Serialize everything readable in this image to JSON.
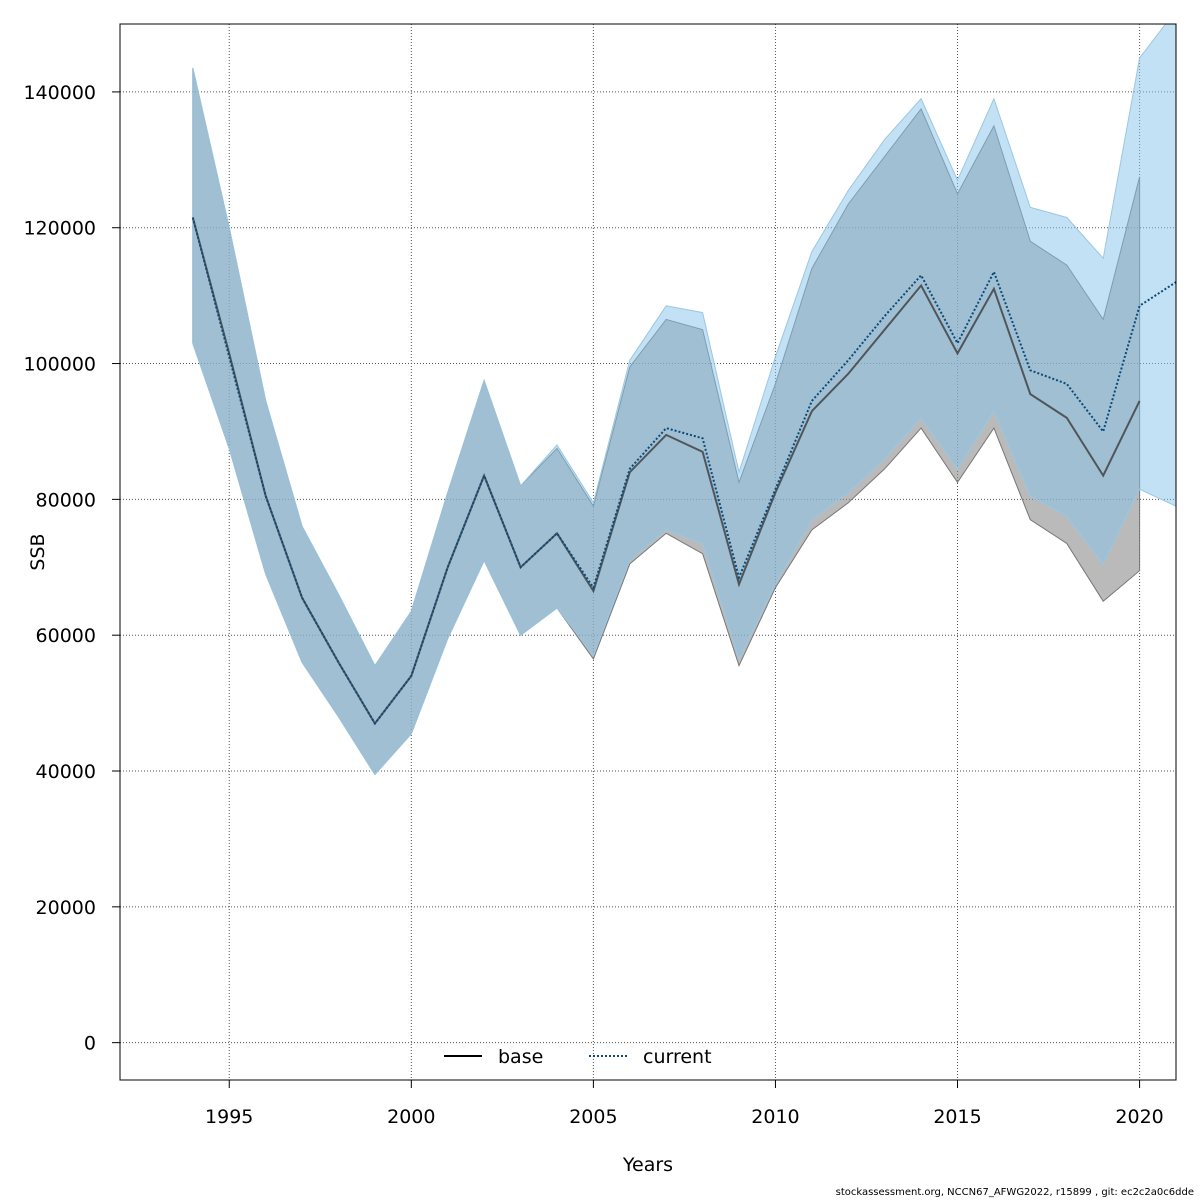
{
  "chart_data": {
    "type": "area",
    "xlabel": "Years",
    "ylabel": "SSB",
    "xlim": [
      1992,
      2021
    ],
    "ylim": [
      -5500,
      150000
    ],
    "x_ticks": [
      1995,
      2000,
      2005,
      2010,
      2015,
      2020
    ],
    "y_ticks": [
      0,
      20000,
      40000,
      60000,
      80000,
      100000,
      120000,
      140000
    ],
    "x_tick_labels": [
      "1995",
      "2000",
      "2005",
      "2010",
      "2015",
      "2020"
    ],
    "y_tick_labels": [
      "0",
      "20000",
      "40000",
      "60000",
      "80000",
      "100000",
      "120000",
      "140000"
    ],
    "grid": true,
    "legend_position": "bottom-center",
    "colors": {
      "base_line": "#000000",
      "base_band": "#8c8c8c",
      "current_line": "#0a4a7a",
      "current_band": "#87c4ea"
    },
    "series": [
      {
        "name": "base",
        "style": "solid",
        "x": [
          1994,
          1995,
          1996,
          1997,
          1998,
          1999,
          2000,
          2001,
          2002,
          2003,
          2004,
          2005,
          2006,
          2007,
          2008,
          2009,
          2010,
          2011,
          2012,
          2013,
          2014,
          2015,
          2016,
          2017,
          2018,
          2019,
          2020
        ],
        "values": [
          121500,
          101500,
          80500,
          65500,
          56000,
          47000,
          54000,
          70000,
          83500,
          70000,
          75000,
          66500,
          84000,
          89500,
          87000,
          67500,
          81000,
          93000,
          98500,
          105000,
          111500,
          101500,
          111000,
          95500,
          92000,
          83500,
          94500
        ],
        "lower": [
          103000,
          87500,
          69000,
          56000,
          48000,
          39500,
          45500,
          59500,
          71000,
          60000,
          64000,
          56500,
          70500,
          75000,
          72000,
          55500,
          67000,
          75500,
          79500,
          84500,
          90500,
          82500,
          90500,
          77000,
          73500,
          65000,
          69500
        ],
        "upper": [
          143500,
          120000,
          94500,
          76000,
          66000,
          55500,
          63500,
          81000,
          97500,
          82000,
          87500,
          79000,
          99500,
          106500,
          105000,
          82500,
          97000,
          114000,
          123500,
          130500,
          137500,
          125000,
          135000,
          118000,
          114500,
          106500,
          127500
        ]
      },
      {
        "name": "current",
        "style": "dotted",
        "x": [
          1994,
          1995,
          1996,
          1997,
          1998,
          1999,
          2000,
          2001,
          2002,
          2003,
          2004,
          2005,
          2006,
          2007,
          2008,
          2009,
          2010,
          2011,
          2012,
          2013,
          2014,
          2015,
          2016,
          2017,
          2018,
          2019,
          2020,
          2021
        ],
        "values": [
          121500,
          101000,
          80500,
          65500,
          56000,
          47000,
          54000,
          70000,
          83500,
          70000,
          75000,
          67000,
          84500,
          90500,
          89000,
          68500,
          81500,
          94500,
          100500,
          107000,
          113000,
          103000,
          113500,
          99000,
          97000,
          90000,
          108500,
          112000
        ],
        "lower": [
          103000,
          87500,
          69000,
          56000,
          48000,
          39500,
          45500,
          59500,
          71000,
          60000,
          64000,
          57000,
          71000,
          75500,
          73500,
          56500,
          67500,
          77000,
          81000,
          86000,
          92000,
          84500,
          93000,
          80500,
          77500,
          70500,
          81500,
          79000
        ],
        "upper": [
          143500,
          120000,
          94500,
          76000,
          66000,
          55500,
          63500,
          81000,
          97500,
          82000,
          88000,
          79500,
          100500,
          108500,
          107500,
          84000,
          101000,
          116500,
          125500,
          133000,
          139000,
          127000,
          139000,
          123000,
          121500,
          115500,
          145000,
          152000
        ]
      }
    ]
  },
  "footer": {
    "note": "stockassessment.org, NCCN67_AFWG2022, r15899 , git: ec2c2a0c6dde"
  }
}
